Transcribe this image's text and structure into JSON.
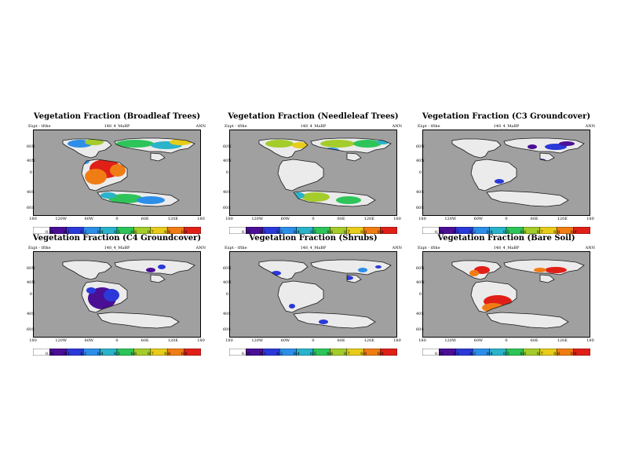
{
  "colors": {
    "ocean": "#a0a0a0",
    "land_zero": "#ebebeb",
    "coast": "#1a1a1a",
    "palette": [
      "#ffffff",
      "#4b0f96",
      "#2a39d8",
      "#2d8ee8",
      "#2ab3c9",
      "#2ec45a",
      "#a4cc2b",
      "#e8cc1a",
      "#f07d14",
      "#e02018"
    ]
  },
  "common": {
    "expt_label": "Expt - tfthe",
    "run_label": "148_4_MaBP",
    "season": "ANN",
    "lat_ticks": [
      "60N",
      "40N",
      "0",
      "40S",
      "60S"
    ],
    "lon_ticks": [
      "180",
      "120W",
      "60W",
      "0",
      "60E",
      "120E",
      "180"
    ],
    "colorbar_ticks": [
      "0.05",
      "0.1",
      "0.2",
      "0.4",
      "0.5",
      "0.6",
      "0.7",
      "0.8",
      "0.9"
    ]
  },
  "panels": [
    {
      "title": "Vegetation Fraction (Broadleaf Trees)",
      "run_label": "148_4_MaBP",
      "colorbar_ticks": [
        "0.05",
        "0.1",
        "0.2",
        "0.4",
        "0.5",
        "0.6",
        "0.7",
        "0.8",
        "0.9"
      ],
      "variable": "broadleaf-trees"
    },
    {
      "title": "Vegetation Fraction (Needleleaf Trees)",
      "run_label": "148_4_MaBP",
      "colorbar_ticks": [
        "0.05",
        "0.1",
        "0.2",
        "0.4",
        "0.5",
        "0.6",
        "0.7",
        "0.8",
        "0.9"
      ],
      "variable": "needleleaf-trees"
    },
    {
      "title": "Vegetation Fraction (C3 Groundcover)",
      "run_label": "148_4_MaBP",
      "colorbar_ticks": [
        "0.05",
        "0.1",
        "0.2",
        "0.4",
        "0.5",
        "0.6",
        "0.7",
        "0.8",
        "0.9"
      ],
      "variable": "c3-groundcover"
    },
    {
      "title": "Vegetation Fraction (C4 Groundcover)",
      "run_label": "148_4_MaBP",
      "colorbar_ticks": [
        "0.05",
        "0.1",
        "0.2",
        "0.4",
        "0.5",
        "0.6",
        "0.7",
        "0.8",
        "0.9"
      ],
      "variable": "c4-groundcover"
    },
    {
      "title": "Vegetation Fraction (Shrubs)",
      "run_label": "148_4_MaBP",
      "colorbar_ticks": [
        "0.05",
        "0.1",
        "0.2",
        "0.4",
        "0.5",
        "0.6",
        "0.7",
        "0.8",
        "0.9"
      ],
      "variable": "shrubs"
    },
    {
      "title": "Vegetation Fraction (Bare Soil)",
      "run_label": "148_4_MaBP",
      "colorbar_ticks": [
        "0.05",
        "0.1",
        "0.2",
        "0.4",
        "0.5",
        "0.6",
        "0.7",
        "0.8",
        "0.9"
      ],
      "variable": "bare-soil"
    }
  ]
}
